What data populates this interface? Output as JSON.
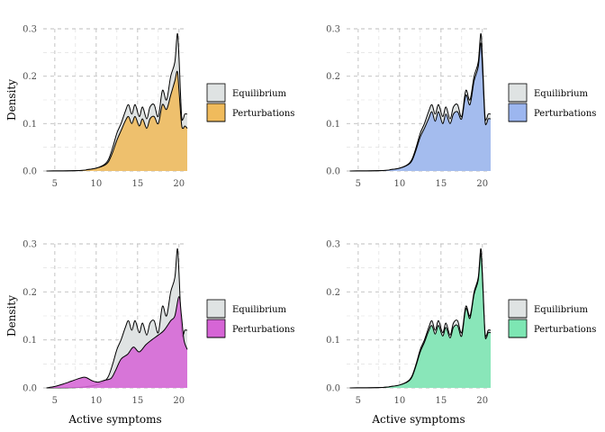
{
  "chart_data": [
    {
      "type": "area",
      "xlabel": "",
      "ylabel": "Density",
      "xlim": [
        3.6,
        21
      ],
      "ylim": [
        0,
        0.3
      ],
      "xticks": [
        5,
        10,
        15,
        20
      ],
      "yticks": [
        0.0,
        0.1,
        0.2,
        0.3
      ],
      "grid": true,
      "legend_position": "right",
      "series": [
        {
          "name": "Equilibrium",
          "color": "#dfe3e3",
          "x": [
            4,
            8,
            9,
            10,
            11,
            11.5,
            12,
            12.5,
            13,
            13.5,
            13.9,
            14.3,
            14.7,
            15.2,
            15.6,
            16.1,
            16.5,
            17,
            17.5,
            18,
            18.5,
            19,
            19.5,
            19.8,
            20,
            20.3,
            20.5,
            20.7,
            21
          ],
          "y": [
            0,
            0.001,
            0.003,
            0.006,
            0.014,
            0.025,
            0.05,
            0.08,
            0.1,
            0.125,
            0.14,
            0.12,
            0.14,
            0.115,
            0.135,
            0.11,
            0.135,
            0.14,
            0.115,
            0.17,
            0.15,
            0.2,
            0.23,
            0.29,
            0.24,
            0.12,
            0.11,
            0.12,
            0.12
          ]
        },
        {
          "name": "Perturbations",
          "color": "#f0bb5c",
          "x": [
            4,
            8,
            9,
            10,
            11,
            11.5,
            12,
            12.5,
            13,
            13.5,
            13.9,
            14.3,
            14.7,
            15.2,
            15.6,
            16.1,
            16.5,
            17,
            17.5,
            18,
            18.5,
            19,
            19.5,
            19.8,
            20,
            20.3,
            20.5,
            20.7,
            21
          ],
          "y": [
            0,
            0.001,
            0.003,
            0.006,
            0.012,
            0.02,
            0.04,
            0.065,
            0.085,
            0.105,
            0.115,
            0.1,
            0.115,
            0.095,
            0.11,
            0.09,
            0.11,
            0.115,
            0.1,
            0.14,
            0.13,
            0.16,
            0.19,
            0.21,
            0.17,
            0.1,
            0.09,
            0.095,
            0.09
          ]
        }
      ]
    },
    {
      "type": "area",
      "xlabel": "",
      "ylabel": "",
      "xlim": [
        3.6,
        21
      ],
      "ylim": [
        0,
        0.3
      ],
      "xticks": [
        5,
        10,
        15,
        20
      ],
      "yticks": [
        0.0,
        0.1,
        0.2,
        0.3
      ],
      "grid": true,
      "legend_position": "right",
      "series": [
        {
          "name": "Equilibrium",
          "color": "#dfe3e3",
          "x": [
            4,
            8,
            9,
            10,
            11,
            11.5,
            12,
            12.5,
            13,
            13.5,
            13.9,
            14.3,
            14.7,
            15.2,
            15.6,
            16.1,
            16.5,
            17,
            17.5,
            18,
            18.5,
            19,
            19.5,
            19.8,
            20,
            20.3,
            20.5,
            20.7,
            21
          ],
          "y": [
            0,
            0.001,
            0.003,
            0.006,
            0.014,
            0.025,
            0.05,
            0.08,
            0.1,
            0.125,
            0.14,
            0.12,
            0.14,
            0.115,
            0.135,
            0.11,
            0.135,
            0.14,
            0.115,
            0.17,
            0.15,
            0.2,
            0.23,
            0.29,
            0.24,
            0.12,
            0.11,
            0.12,
            0.12
          ]
        },
        {
          "name": "Perturbations",
          "color": "#9cb6ef",
          "x": [
            4,
            8,
            9,
            10,
            11,
            11.5,
            12,
            12.5,
            13,
            13.5,
            13.9,
            14.3,
            14.7,
            15.2,
            15.6,
            16.1,
            16.5,
            17,
            17.5,
            18,
            18.5,
            19,
            19.5,
            19.8,
            20,
            20.3,
            20.5,
            20.7,
            21
          ],
          "y": [
            0,
            0.001,
            0.003,
            0.006,
            0.013,
            0.022,
            0.045,
            0.072,
            0.09,
            0.11,
            0.125,
            0.105,
            0.125,
            0.1,
            0.12,
            0.1,
            0.12,
            0.125,
            0.11,
            0.16,
            0.14,
            0.19,
            0.22,
            0.27,
            0.22,
            0.11,
            0.1,
            0.11,
            0.11
          ]
        }
      ]
    },
    {
      "type": "area",
      "xlabel": "Active symptoms",
      "ylabel": "Density",
      "xlim": [
        3.6,
        21
      ],
      "ylim": [
        0,
        0.3
      ],
      "xticks": [
        5,
        10,
        15,
        20
      ],
      "yticks": [
        0.0,
        0.1,
        0.2,
        0.3
      ],
      "grid": true,
      "legend_position": "right",
      "series": [
        {
          "name": "Equilibrium",
          "color": "#dfe3e3",
          "x": [
            4,
            8,
            9,
            10,
            11,
            11.5,
            12,
            12.5,
            13,
            13.5,
            13.9,
            14.3,
            14.7,
            15.2,
            15.6,
            16.1,
            16.5,
            17,
            17.5,
            18,
            18.5,
            19,
            19.5,
            19.8,
            20,
            20.3,
            20.5,
            20.7,
            21
          ],
          "y": [
            0,
            0.001,
            0.003,
            0.006,
            0.014,
            0.025,
            0.05,
            0.08,
            0.1,
            0.125,
            0.14,
            0.12,
            0.14,
            0.115,
            0.135,
            0.11,
            0.135,
            0.14,
            0.115,
            0.17,
            0.15,
            0.2,
            0.23,
            0.29,
            0.24,
            0.12,
            0.11,
            0.12,
            0.12
          ]
        },
        {
          "name": "Perturbations",
          "color": "#d665d6",
          "x": [
            4,
            5,
            6,
            7,
            8,
            8.7,
            9.5,
            10.2,
            11,
            11.8,
            12.3,
            13,
            13.8,
            14.5,
            15.2,
            16,
            16.7,
            17.5,
            18.2,
            19,
            19.5,
            20,
            20.3,
            20.6,
            21
          ],
          "y": [
            0,
            0.003,
            0.008,
            0.014,
            0.02,
            0.022,
            0.015,
            0.012,
            0.016,
            0.02,
            0.035,
            0.06,
            0.07,
            0.085,
            0.075,
            0.09,
            0.1,
            0.11,
            0.12,
            0.14,
            0.15,
            0.19,
            0.15,
            0.1,
            0.08
          ]
        }
      ]
    },
    {
      "type": "area",
      "xlabel": "Active symptoms",
      "ylabel": "",
      "xlim": [
        3.6,
        21
      ],
      "ylim": [
        0,
        0.3
      ],
      "xticks": [
        5,
        10,
        15,
        20
      ],
      "yticks": [
        0.0,
        0.1,
        0.2,
        0.3
      ],
      "grid": true,
      "legend_position": "right",
      "series": [
        {
          "name": "Equilibrium",
          "color": "#dfe3e3",
          "x": [
            4,
            8,
            9,
            10,
            11,
            11.5,
            12,
            12.5,
            13,
            13.5,
            13.9,
            14.3,
            14.7,
            15.2,
            15.6,
            16.1,
            16.5,
            17,
            17.5,
            18,
            18.5,
            19,
            19.5,
            19.8,
            20,
            20.3,
            20.5,
            20.7,
            21
          ],
          "y": [
            0,
            0.001,
            0.003,
            0.006,
            0.014,
            0.025,
            0.05,
            0.08,
            0.1,
            0.125,
            0.14,
            0.12,
            0.14,
            0.115,
            0.135,
            0.11,
            0.135,
            0.14,
            0.115,
            0.17,
            0.15,
            0.2,
            0.23,
            0.29,
            0.24,
            0.12,
            0.11,
            0.12,
            0.12
          ]
        },
        {
          "name": "Perturbations",
          "color": "#7de6b3",
          "x": [
            4,
            8,
            9,
            10,
            11,
            11.5,
            12,
            12.5,
            13,
            13.5,
            13.9,
            14.3,
            14.7,
            15.2,
            15.6,
            16.1,
            16.5,
            17,
            17.5,
            18,
            18.5,
            19,
            19.5,
            19.8,
            20,
            20.3,
            20.5,
            20.7,
            21
          ],
          "y": [
            0,
            0.001,
            0.003,
            0.006,
            0.013,
            0.023,
            0.047,
            0.075,
            0.095,
            0.118,
            0.13,
            0.112,
            0.13,
            0.108,
            0.126,
            0.104,
            0.126,
            0.13,
            0.108,
            0.165,
            0.145,
            0.195,
            0.225,
            0.28,
            0.23,
            0.115,
            0.105,
            0.115,
            0.115
          ]
        }
      ]
    }
  ]
}
